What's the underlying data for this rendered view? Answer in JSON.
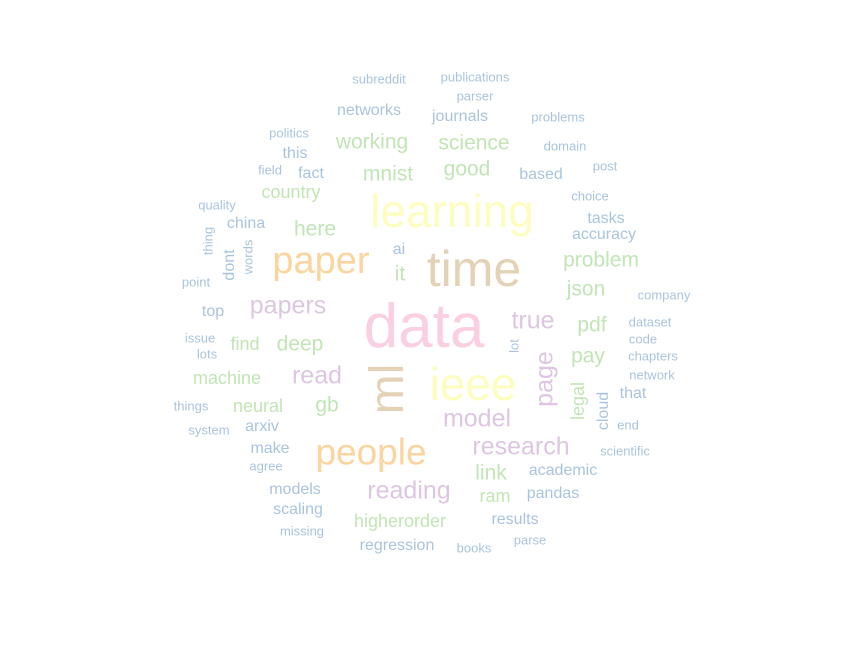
{
  "palette": {
    "blue": "#a9c4de",
    "green": "#c2e5b5",
    "orange": "#fbd49f",
    "yellow": "#fdfdbf",
    "tan": "#e3d2b5",
    "pink": "#fbcfe2",
    "purple": "#dec5e2"
  },
  "words": [
    {
      "id": "data",
      "text": "data",
      "color": "pink"
    },
    {
      "id": "time",
      "text": "time",
      "color": "tan"
    },
    {
      "id": "learning",
      "text": "learning",
      "color": "yellow"
    },
    {
      "id": "ieee",
      "text": "ieee",
      "color": "yellow"
    },
    {
      "id": "ml",
      "text": "ml",
      "color": "tan"
    },
    {
      "id": "paper",
      "text": "paper",
      "color": "orange"
    },
    {
      "id": "people",
      "text": "people",
      "color": "orange"
    },
    {
      "id": "research",
      "text": "research",
      "color": "purple"
    },
    {
      "id": "reading",
      "text": "reading",
      "color": "purple"
    },
    {
      "id": "papers",
      "text": "papers",
      "color": "purple"
    },
    {
      "id": "model",
      "text": "model",
      "color": "purple"
    },
    {
      "id": "true",
      "text": "true",
      "color": "purple"
    },
    {
      "id": "read",
      "text": "read",
      "color": "purple"
    },
    {
      "id": "page",
      "text": "page",
      "color": "purple"
    },
    {
      "id": "problem",
      "text": "problem",
      "color": "green"
    },
    {
      "id": "working",
      "text": "working",
      "color": "green"
    },
    {
      "id": "science",
      "text": "science",
      "color": "green"
    },
    {
      "id": "good",
      "text": "good",
      "color": "green"
    },
    {
      "id": "mnist",
      "text": "mnist",
      "color": "green"
    },
    {
      "id": "here",
      "text": "here",
      "color": "green"
    },
    {
      "id": "json",
      "text": "json",
      "color": "green"
    },
    {
      "id": "pdf",
      "text": "pdf",
      "color": "green"
    },
    {
      "id": "pay",
      "text": "pay",
      "color": "green"
    },
    {
      "id": "deep",
      "text": "deep",
      "color": "green"
    },
    {
      "id": "higherorder",
      "text": "higherorder",
      "color": "green"
    },
    {
      "id": "link",
      "text": "link",
      "color": "green"
    },
    {
      "id": "country",
      "text": "country",
      "color": "green"
    },
    {
      "id": "machine",
      "text": "machine",
      "color": "green"
    },
    {
      "id": "neural",
      "text": "neural",
      "color": "green"
    },
    {
      "id": "gb",
      "text": "gb",
      "color": "green"
    },
    {
      "id": "find",
      "text": "find",
      "color": "green"
    },
    {
      "id": "it",
      "text": "it",
      "color": "green"
    },
    {
      "id": "ram",
      "text": "ram",
      "color": "green"
    },
    {
      "id": "legal",
      "text": "legal",
      "color": "green"
    },
    {
      "id": "networks",
      "text": "networks",
      "color": "blue"
    },
    {
      "id": "journals",
      "text": "journals",
      "color": "blue"
    },
    {
      "id": "based",
      "text": "based",
      "color": "blue"
    },
    {
      "id": "accuracy",
      "text": "accuracy",
      "color": "blue"
    },
    {
      "id": "tasks",
      "text": "tasks",
      "color": "blue"
    },
    {
      "id": "china",
      "text": "china",
      "color": "blue"
    },
    {
      "id": "this",
      "text": "this",
      "color": "blue"
    },
    {
      "id": "fact",
      "text": "fact",
      "color": "blue"
    },
    {
      "id": "ai",
      "text": "ai",
      "color": "blue"
    },
    {
      "id": "top",
      "text": "top",
      "color": "blue"
    },
    {
      "id": "arxiv",
      "text": "arxiv",
      "color": "blue"
    },
    {
      "id": "make",
      "text": "make",
      "color": "blue"
    },
    {
      "id": "models",
      "text": "models",
      "color": "blue"
    },
    {
      "id": "scaling",
      "text": "scaling",
      "color": "blue"
    },
    {
      "id": "regression",
      "text": "regression",
      "color": "blue"
    },
    {
      "id": "results",
      "text": "results",
      "color": "blue"
    },
    {
      "id": "pandas",
      "text": "pandas",
      "color": "blue"
    },
    {
      "id": "academic",
      "text": "academic",
      "color": "blue"
    },
    {
      "id": "that",
      "text": "that",
      "color": "blue"
    },
    {
      "id": "cloud",
      "text": "cloud",
      "color": "blue"
    },
    {
      "id": "dont",
      "text": "dont",
      "color": "blue"
    },
    {
      "id": "subreddit",
      "text": "subreddit",
      "color": "blue"
    },
    {
      "id": "publications",
      "text": "publications",
      "color": "blue"
    },
    {
      "id": "parser",
      "text": "parser",
      "color": "blue"
    },
    {
      "id": "problems",
      "text": "problems",
      "color": "blue"
    },
    {
      "id": "domain",
      "text": "domain",
      "color": "blue"
    },
    {
      "id": "post",
      "text": "post",
      "color": "blue"
    },
    {
      "id": "politics",
      "text": "politics",
      "color": "blue"
    },
    {
      "id": "field",
      "text": "field",
      "color": "blue"
    },
    {
      "id": "quality",
      "text": "quality",
      "color": "blue"
    },
    {
      "id": "choice",
      "text": "choice",
      "color": "blue"
    },
    {
      "id": "company",
      "text": "company",
      "color": "blue"
    },
    {
      "id": "dataset",
      "text": "dataset",
      "color": "blue"
    },
    {
      "id": "code",
      "text": "code",
      "color": "blue"
    },
    {
      "id": "chapters",
      "text": "chapters",
      "color": "blue"
    },
    {
      "id": "network",
      "text": "network",
      "color": "blue"
    },
    {
      "id": "end",
      "text": "end",
      "color": "blue"
    },
    {
      "id": "scientific",
      "text": "scientific",
      "color": "blue"
    },
    {
      "id": "point",
      "text": "point",
      "color": "blue"
    },
    {
      "id": "issue",
      "text": "issue",
      "color": "blue"
    },
    {
      "id": "lots",
      "text": "lots",
      "color": "blue"
    },
    {
      "id": "things",
      "text": "things",
      "color": "blue"
    },
    {
      "id": "system",
      "text": "system",
      "color": "blue"
    },
    {
      "id": "agree",
      "text": "agree",
      "color": "blue"
    },
    {
      "id": "missing",
      "text": "missing",
      "color": "blue"
    },
    {
      "id": "books",
      "text": "books",
      "color": "blue"
    },
    {
      "id": "parse",
      "text": "parse",
      "color": "blue"
    },
    {
      "id": "thing",
      "text": "thing",
      "color": "blue"
    },
    {
      "id": "words",
      "text": "words",
      "color": "blue"
    },
    {
      "id": "lot",
      "text": "lot",
      "color": "blue"
    }
  ]
}
